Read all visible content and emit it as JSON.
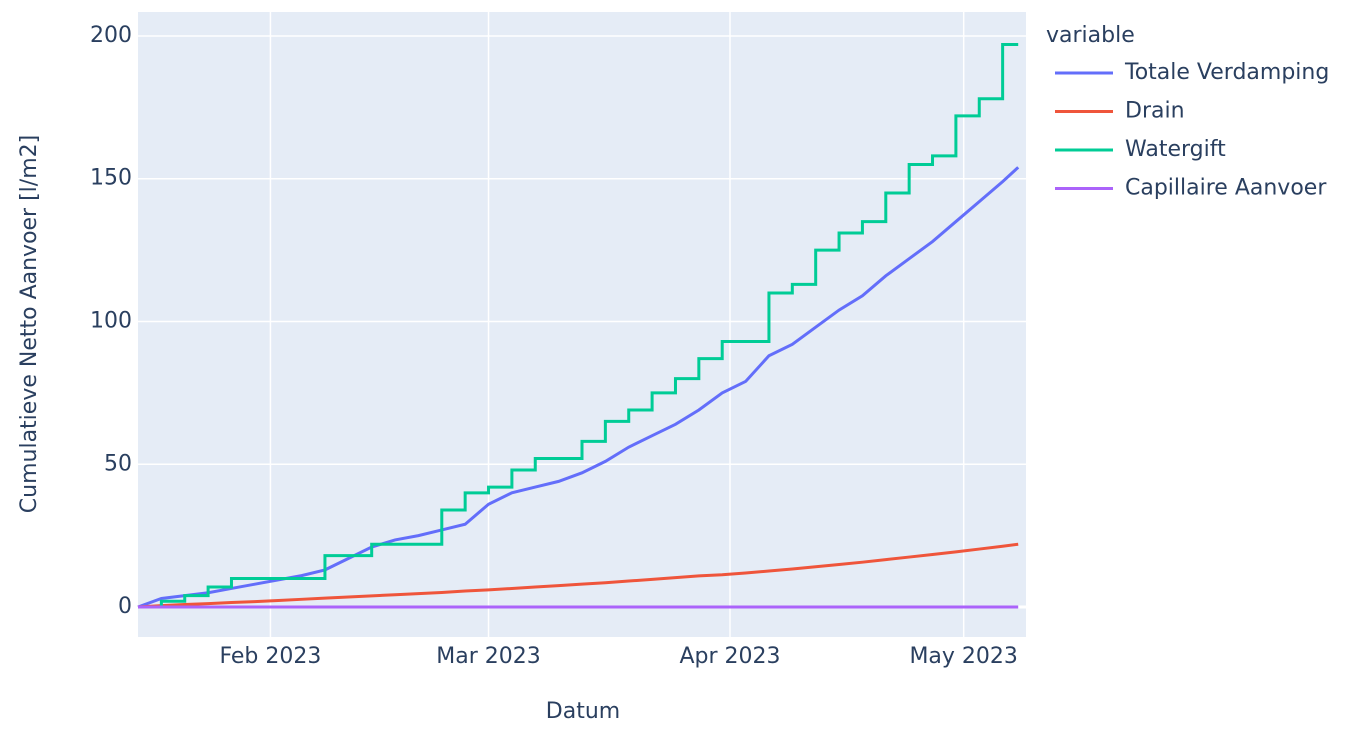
{
  "chart_data": {
    "type": "line",
    "line_shape": [
      "linear",
      "linear",
      "hv",
      "linear"
    ],
    "x_title": "Datum",
    "y_title": "Cumulatieve Netto Aanvoer [l/m2]",
    "legend_title": "variable",
    "legend_position": "right",
    "x": [
      "2023-01-15",
      "2023-01-18",
      "2023-01-21",
      "2023-01-24",
      "2023-01-27",
      "2023-01-30",
      "2023-02-02",
      "2023-02-05",
      "2023-02-08",
      "2023-02-11",
      "2023-02-14",
      "2023-02-17",
      "2023-02-20",
      "2023-02-23",
      "2023-02-26",
      "2023-03-01",
      "2023-03-04",
      "2023-03-07",
      "2023-03-10",
      "2023-03-13",
      "2023-03-16",
      "2023-03-19",
      "2023-03-22",
      "2023-03-25",
      "2023-03-28",
      "2023-03-31",
      "2023-04-03",
      "2023-04-06",
      "2023-04-09",
      "2023-04-12",
      "2023-04-15",
      "2023-04-18",
      "2023-04-21",
      "2023-04-24",
      "2023-04-27",
      "2023-04-30",
      "2023-05-03",
      "2023-05-06",
      "2023-05-08"
    ],
    "series": [
      {
        "name": "Totale Verdamping",
        "color": "#636efa",
        "values": [
          0,
          3,
          4,
          5,
          6.5,
          8,
          9.5,
          11,
          13,
          17,
          21,
          23.5,
          25,
          27,
          29,
          36,
          40,
          42,
          44,
          47,
          51,
          56,
          60,
          64,
          69,
          75,
          79,
          88,
          92,
          98,
          104,
          109,
          116,
          122,
          128,
          135,
          142,
          149,
          154
        ]
      },
      {
        "name": "Drain",
        "color": "#ef553b",
        "values": [
          0,
          0.5,
          0.9,
          1.2,
          1.6,
          1.9,
          2.3,
          2.7,
          3.1,
          3.5,
          3.9,
          4.3,
          4.7,
          5.1,
          5.6,
          6,
          6.5,
          7,
          7.5,
          8,
          8.5,
          9.1,
          9.7,
          10.3,
          10.9,
          11.3,
          11.9,
          12.6,
          13.3,
          14.1,
          14.9,
          15.7,
          16.6,
          17.5,
          18.4,
          19.3,
          20.3,
          21.3,
          22
        ]
      },
      {
        "name": "Watergift",
        "color": "#00cc96",
        "values": [
          0,
          2,
          4,
          7,
          10,
          10,
          10,
          10,
          18,
          18,
          22,
          22,
          22,
          34,
          40,
          42,
          48,
          52,
          52,
          58,
          65,
          69,
          75,
          80,
          87,
          93,
          93,
          110,
          113,
          125,
          131,
          135,
          145,
          155,
          158,
          172,
          178,
          197,
          197
        ]
      },
      {
        "name": "Capillaire Aanvoer",
        "color": "#ab63fa",
        "values": [
          0,
          0,
          0,
          0,
          0,
          0,
          0,
          0,
          0,
          0,
          0,
          0,
          0,
          0,
          0,
          0,
          0,
          0,
          0,
          0,
          0,
          0,
          0,
          0,
          0,
          0,
          0,
          0,
          0,
          0,
          0,
          0,
          0,
          0,
          0,
          0,
          0,
          0,
          0
        ]
      }
    ],
    "xlim": [
      "2023-01-15",
      "2023-05-09"
    ],
    "xticks": [
      {
        "value": "2023-02-01",
        "label": "Feb 2023"
      },
      {
        "value": "2023-03-01",
        "label": "Mar 2023"
      },
      {
        "value": "2023-04-01",
        "label": "Apr 2023"
      },
      {
        "value": "2023-05-01",
        "label": "May 2023"
      }
    ],
    "ylim": [
      -10.5,
      208.4
    ],
    "yticks": [
      0,
      50,
      100,
      150,
      200
    ],
    "grid": true
  }
}
